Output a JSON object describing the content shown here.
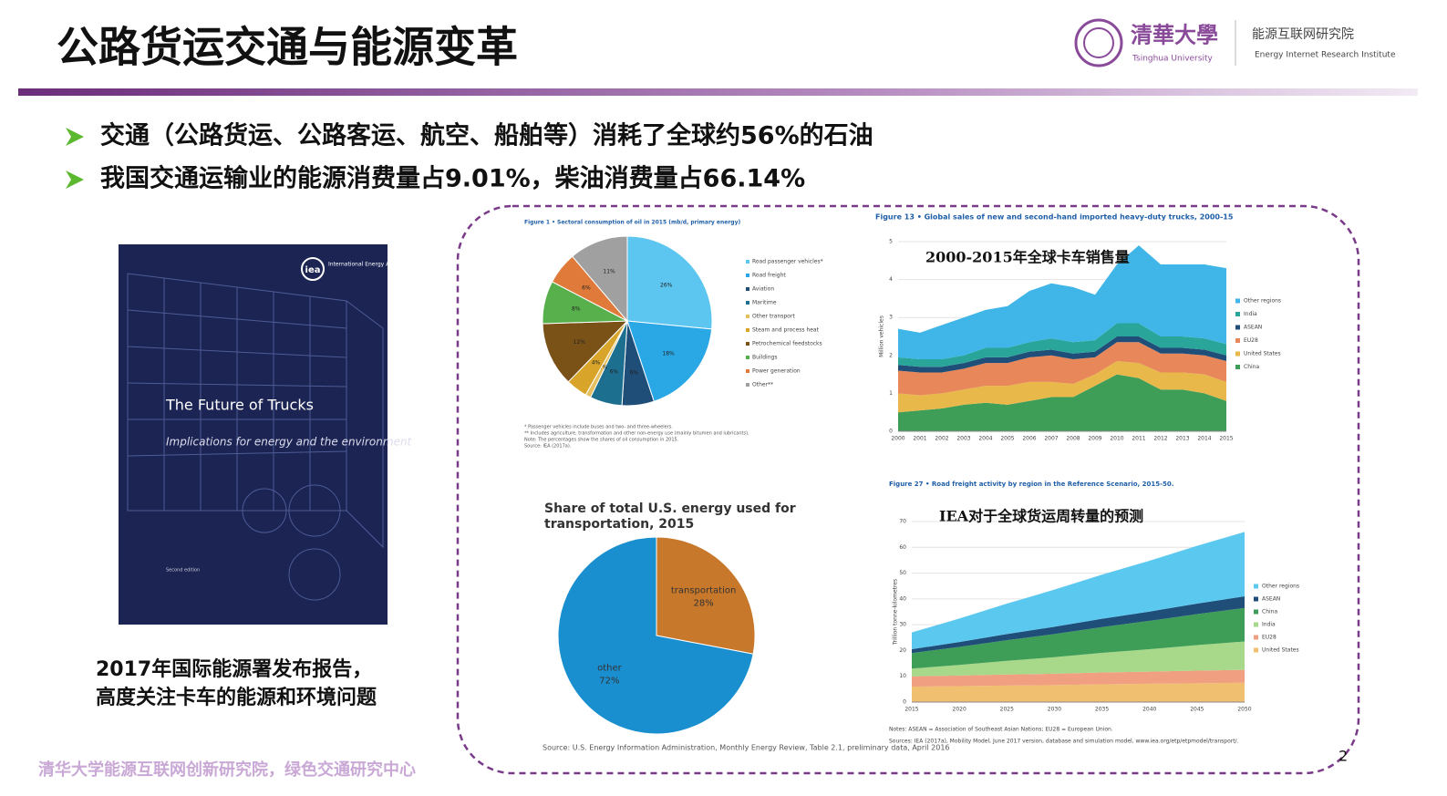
{
  "header": {
    "title": "公路货运交通与能源变革",
    "logo": {
      "name_cn": "清華大學",
      "name_en": "Tsinghua University",
      "institute_cn": "能源互联网研究院",
      "institute_en": "Energy Internet Research Institute"
    }
  },
  "bullets": [
    "交通（公路货运、公路客运、航空、船舶等）消耗了全球约56%的石油",
    "我国交通运输业的能源消费量占9.01%，柴油消费量占66.14%"
  ],
  "book": {
    "publisher": "International Energy Agency",
    "logo": "iea",
    "title": "The Future of Trucks",
    "subtitle": "Implications for energy and the environment",
    "edition": "Second edition"
  },
  "caption": [
    "2017年国际能源署发布报告，",
    "高度关注卡车的能源和环境问题"
  ],
  "chart_data": [
    {
      "type": "pie",
      "title": "Figure 1 • Sectoral consumption of oil in 2015 (mb/d, primary energy)",
      "categories": [
        "Road passenger vehicles*",
        "Road freight",
        "Aviation",
        "Maritime",
        "Other transport",
        "Steam and process heat",
        "Petrochemical feedstocks",
        "Buildings",
        "Power generation",
        "Other**"
      ],
      "values": [
        26,
        18,
        6,
        6,
        1,
        4,
        12,
        8,
        6,
        11
      ],
      "value_labels": [
        "26%",
        "18%",
        "6%",
        "6%",
        "1%",
        "4%",
        "12%",
        "8%",
        "6%",
        "11%"
      ],
      "colors": [
        "#5cc6f0",
        "#2aa8e6",
        "#1f4e79",
        "#1d6f90",
        "#e6c060",
        "#d8a52a",
        "#7a5218",
        "#58b04c",
        "#e07a3a",
        "#a0a0a0"
      ],
      "notes": [
        "* Passenger vehicles include buses and two- and three-wheelers.",
        "** Includes agriculture, transformation and other non-energy use (mainly bitumen and lubricants).",
        "Note: The percentages show the shares of oil consumption in 2015.",
        "Source: IEA (2017a)."
      ]
    },
    {
      "type": "pie",
      "title": "Share of total U.S. energy used for transportation, 2015",
      "categories": [
        "transportation",
        "other"
      ],
      "values": [
        28,
        72
      ],
      "value_labels": [
        "28%",
        "72%"
      ],
      "colors": [
        "#c8782a",
        "#1a8fd0"
      ],
      "notes": [
        "Source: U.S. Energy Information Administration, Monthly Energy Review, Table 2.1, preliminary data, April 2016"
      ]
    },
    {
      "type": "area",
      "title": "Figure 13 • Global sales of new and second-hand imported heavy-duty trucks, 2000-15",
      "overlay_title": "2000-2015年全球卡车销售量",
      "ylabel": "Million vehicles",
      "x": [
        2000,
        2001,
        2002,
        2003,
        2004,
        2005,
        2006,
        2007,
        2008,
        2009,
        2010,
        2011,
        2012,
        2013,
        2014,
        2015
      ],
      "xlim": [
        2000,
        2015
      ],
      "ylim": [
        0,
        5
      ],
      "yticks": [
        0,
        1,
        2,
        3,
        4,
        5
      ],
      "series": [
        {
          "name": "China",
          "color": "#3e9e58",
          "values": [
            0.5,
            0.55,
            0.6,
            0.7,
            0.75,
            0.7,
            0.8,
            0.9,
            0.9,
            1.2,
            1.5,
            1.4,
            1.1,
            1.1,
            1.0,
            0.8
          ]
        },
        {
          "name": "United States",
          "color": "#e8b84a",
          "values": [
            0.5,
            0.4,
            0.4,
            0.4,
            0.45,
            0.5,
            0.5,
            0.4,
            0.35,
            0.3,
            0.35,
            0.4,
            0.45,
            0.45,
            0.5,
            0.5
          ]
        },
        {
          "name": "EU28",
          "color": "#e8875a",
          "values": [
            0.6,
            0.6,
            0.55,
            0.55,
            0.6,
            0.6,
            0.65,
            0.7,
            0.65,
            0.45,
            0.5,
            0.55,
            0.5,
            0.5,
            0.5,
            0.55
          ]
        },
        {
          "name": "ASEAN",
          "color": "#1f4e79",
          "values": [
            0.15,
            0.15,
            0.15,
            0.15,
            0.15,
            0.15,
            0.15,
            0.15,
            0.15,
            0.15,
            0.15,
            0.15,
            0.15,
            0.15,
            0.15,
            0.15
          ]
        },
        {
          "name": "India",
          "color": "#2aa59a",
          "values": [
            0.2,
            0.2,
            0.2,
            0.2,
            0.25,
            0.25,
            0.25,
            0.3,
            0.3,
            0.3,
            0.35,
            0.35,
            0.3,
            0.3,
            0.3,
            0.3
          ]
        },
        {
          "name": "Other regions",
          "color": "#3fb5e8",
          "values": [
            0.75,
            0.7,
            0.9,
            1.0,
            1.0,
            1.1,
            1.35,
            1.45,
            1.45,
            1.2,
            1.55,
            2.05,
            1.9,
            1.9,
            1.95,
            2.0
          ]
        }
      ]
    },
    {
      "type": "area",
      "title": "Figure 27 • Road freight activity by region in the Reference Scenario, 2015-50.",
      "overlay_title": "IEA对于全球货运周转量的预测",
      "ylabel": "Trillion tonne-kilometres",
      "x": [
        2015,
        2020,
        2025,
        2030,
        2035,
        2040,
        2045,
        2050
      ],
      "xlim": [
        2015,
        2050
      ],
      "ylim": [
        0,
        70
      ],
      "yticks": [
        0,
        10,
        20,
        30,
        40,
        50,
        60,
        70
      ],
      "series": [
        {
          "name": "United States",
          "color": "#f0c070",
          "values": [
            6,
            6.2,
            6.4,
            6.6,
            6.9,
            7.1,
            7.3,
            7.5
          ]
        },
        {
          "name": "EU28",
          "color": "#f0a080",
          "values": [
            4,
            4.1,
            4.3,
            4.4,
            4.6,
            4.7,
            4.9,
            5
          ]
        },
        {
          "name": "India",
          "color": "#a8d88a",
          "values": [
            3,
            4.1,
            5.3,
            6.4,
            7.6,
            8.7,
            9.9,
            11
          ]
        },
        {
          "name": "China",
          "color": "#3e9e58",
          "values": [
            6,
            7,
            8,
            9,
            10,
            11,
            12,
            13
          ]
        },
        {
          "name": "ASEAN",
          "color": "#1f4e79",
          "values": [
            1.5,
            1.9,
            2.4,
            2.8,
            3.2,
            3.6,
            4.1,
            4.5
          ]
        },
        {
          "name": "Other regions",
          "color": "#5bc8f0",
          "values": [
            6.5,
            9.1,
            11.8,
            14.4,
            17.1,
            19.7,
            22.4,
            25
          ]
        }
      ],
      "notes": [
        "Notes: ASEAN = Association of Southeast Asian Nations; EU28 = European Union.",
        "Sources: IEA (2017a), Mobility Model, June 2017 version, database and simulation model, www.iea.org/etp/etpmodel/transport/."
      ]
    }
  ],
  "footer": {
    "text": "清华大学能源互联网创新研究院，绿色交通研究中心",
    "page": "2"
  }
}
